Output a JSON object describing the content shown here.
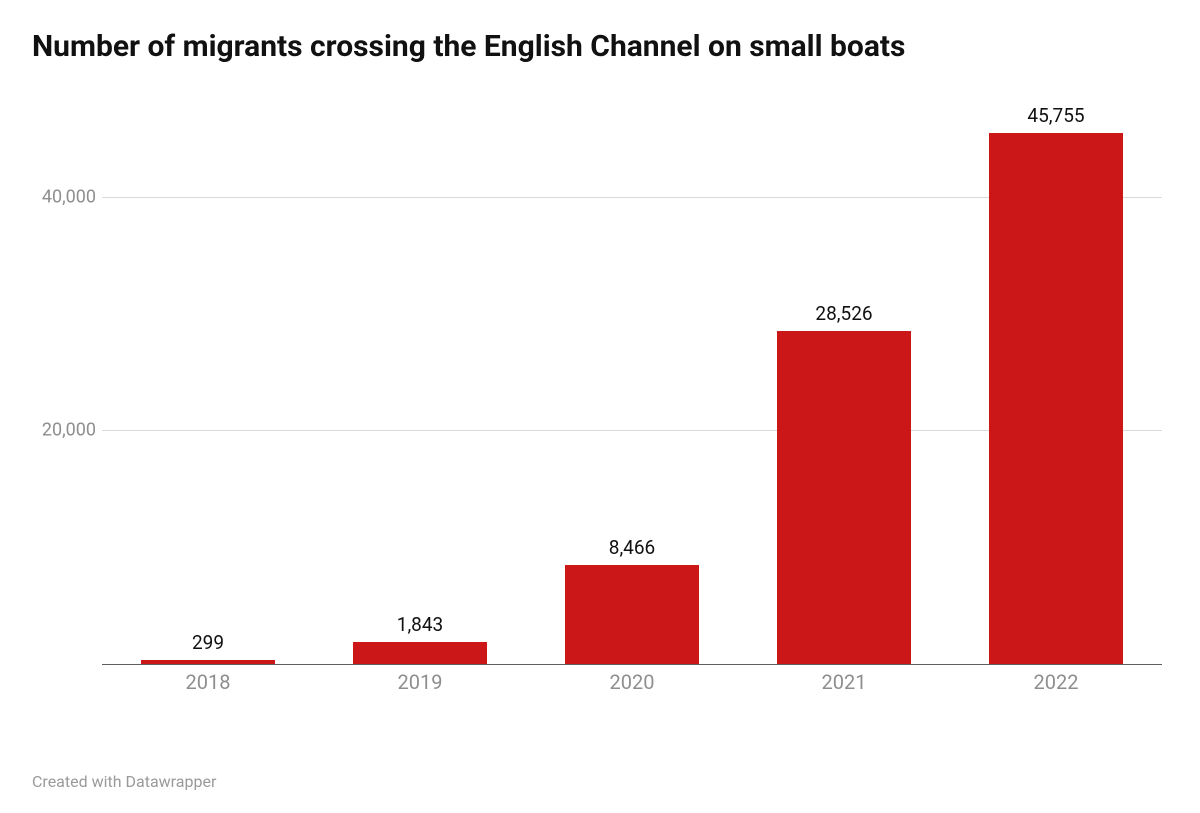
{
  "chart": {
    "type": "bar",
    "title": "Number of migrants crossing the English Channel on small boats",
    "title_fontsize": 30,
    "title_color": "#111111",
    "categories": [
      "2018",
      "2019",
      "2020",
      "2021",
      "2022"
    ],
    "values": [
      299,
      1843,
      8466,
      28526,
      45755
    ],
    "value_labels": [
      "299",
      "1,843",
      "8,466",
      "28,526",
      "45,755"
    ],
    "bar_color": "#cc1719",
    "bar_width_ratio": 0.63,
    "ylim_max": 48000,
    "yticks": [
      20000,
      40000
    ],
    "ytick_labels": [
      "20,000",
      "40,000"
    ],
    "ytick_color": "#8e8e8e",
    "ytick_fontsize": 18,
    "grid_color": "#d9d9d9",
    "baseline_color": "#5f5f5f",
    "xlabel_color": "#8e8e8e",
    "xlabel_fontsize": 20,
    "value_label_fontsize": 19,
    "value_label_color": "#111111",
    "background_color": "#ffffff"
  },
  "footer": {
    "text": "Created with Datawrapper",
    "color": "#9a9a9a",
    "fontsize": 16
  }
}
